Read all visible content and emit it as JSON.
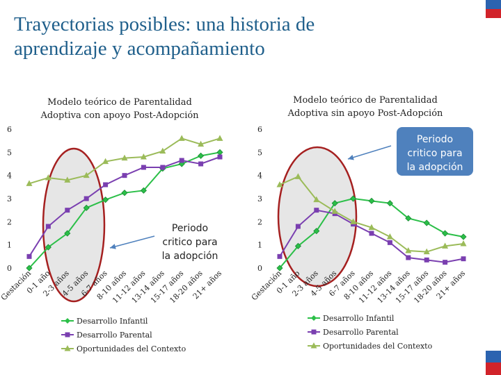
{
  "slide": {
    "title_line1": "Trayectorias posibles: una historia de",
    "title_line2": "aprendizaje y acompañamiento"
  },
  "colors": {
    "title": "#1f5f8b",
    "infantil": "#2bbf48",
    "parental": "#7a3fb0",
    "contexto": "#9bbb59",
    "callout_fill": "#4f81bd",
    "callout_text": "#ffffff",
    "ellipse_fill": "#e6e6e6",
    "ellipse_stroke": "#a52020",
    "flag_blue": "#2b63b0",
    "flag_red": "#d1232a"
  },
  "chart_data": [
    {
      "type": "line",
      "title_line1": "Modelo teórico de Parentalidad",
      "title_line2": "Adoptiva con apoyo Post-Adopción",
      "categories": [
        "Gestación",
        "0-1 año",
        "2-3 años",
        "4-5 años",
        "6-7 años",
        "8-10 años",
        "11-12 años",
        "13-14 años",
        "15-17 años",
        "18-20 años",
        "21+ años"
      ],
      "ylim": [
        0,
        6
      ],
      "yticks": [
        0,
        1,
        2,
        3,
        4,
        5,
        6
      ],
      "series": [
        {
          "name": "Desarrollo Infantil",
          "marker": "diamond",
          "values": [
            0.0,
            0.9,
            1.5,
            2.6,
            2.95,
            3.25,
            3.35,
            4.3,
            4.5,
            4.85,
            5.0
          ]
        },
        {
          "name": "Desarrollo Parental",
          "marker": "square",
          "values": [
            0.5,
            1.8,
            2.5,
            3.0,
            3.6,
            4.0,
            4.35,
            4.35,
            4.65,
            4.5,
            4.8
          ]
        },
        {
          "name": "Oportunidades del Contexto",
          "marker": "triangle",
          "values": [
            3.65,
            3.9,
            3.8,
            4.0,
            4.6,
            4.75,
            4.8,
            5.05,
            5.6,
            5.35,
            5.6
          ]
        }
      ],
      "annotation": {
        "line1": "Periodo",
        "line2": "critico para",
        "line3": "la adopción"
      }
    },
    {
      "type": "line",
      "title_line1": "Modelo teórico de Parentalidad",
      "title_line2": "Adoptiva sin apoyo Post-Adopción",
      "categories": [
        "Gestación",
        "0-1 año",
        "2-3 años",
        "4-5 años",
        "6-7 años",
        "8-10 años",
        "11-12 años",
        "13-14 años",
        "15-17 años",
        "18-20 años",
        "21+ años"
      ],
      "ylim": [
        0,
        6
      ],
      "yticks": [
        0,
        1,
        2,
        3,
        4,
        5,
        6
      ],
      "series": [
        {
          "name": "Desarrollo Infantil",
          "marker": "diamond",
          "values": [
            0.0,
            0.95,
            1.6,
            2.8,
            3.0,
            2.9,
            2.8,
            2.15,
            1.95,
            1.5,
            1.35
          ]
        },
        {
          "name": "Desarrollo Parental",
          "marker": "square",
          "values": [
            0.5,
            1.8,
            2.5,
            2.35,
            1.9,
            1.5,
            1.1,
            0.45,
            0.35,
            0.25,
            0.4
          ]
        },
        {
          "name": "Oportunidades del Contexto",
          "marker": "triangle",
          "values": [
            3.6,
            3.95,
            2.95,
            2.45,
            2.0,
            1.75,
            1.35,
            0.75,
            0.7,
            0.95,
            1.05
          ]
        }
      ],
      "annotation": {
        "line1": "Periodo",
        "line2": "critico para",
        "line3": "la adopción"
      }
    }
  ]
}
